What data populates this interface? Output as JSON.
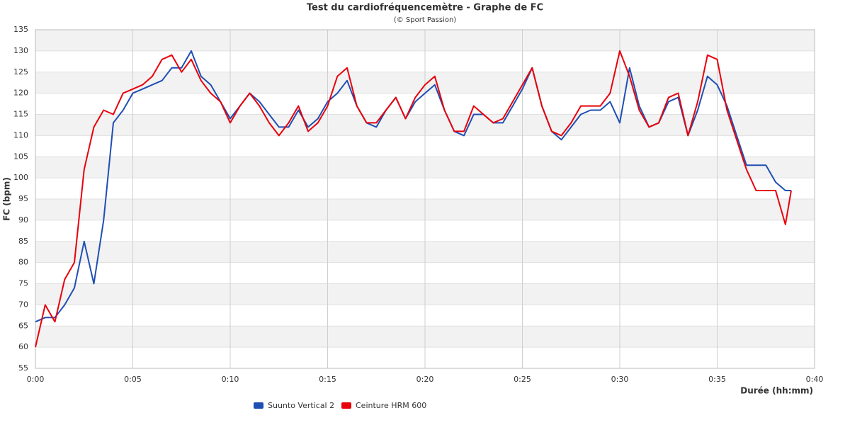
{
  "chart_data": {
    "type": "line",
    "title": "Test du cardiofréquencemètre - Graphe de FC",
    "subtitle": "(© Sport Passion)",
    "x_label": "Durée (hh:mm)",
    "y_label": "FC (bpm)",
    "x": [
      0,
      0.5,
      1,
      1.5,
      2,
      2.5,
      3,
      3.5,
      4,
      4.5,
      5,
      5.5,
      6,
      6.5,
      7,
      7.5,
      8,
      8.5,
      9,
      9.5,
      10,
      10.5,
      11,
      11.5,
      12,
      12.5,
      13,
      13.5,
      14,
      14.5,
      15,
      15.5,
      16,
      16.5,
      17,
      17.5,
      18,
      18.5,
      19,
      19.5,
      20,
      20.5,
      21,
      21.5,
      22,
      22.5,
      23,
      23.5,
      24,
      24.5,
      25,
      25.5,
      26,
      26.5,
      27,
      27.5,
      28,
      28.5,
      29,
      29.5,
      30,
      30.5,
      31,
      31.5,
      32,
      32.5,
      33,
      33.5,
      34,
      34.5,
      35,
      35.5,
      36,
      36.5,
      37,
      37.5,
      38,
      38.5,
      38.8
    ],
    "series": [
      {
        "name": "Suunto Vertical 2",
        "color": "#1f4fb4",
        "values": [
          66,
          67,
          67,
          70,
          74,
          85,
          75,
          90,
          113,
          116,
          120,
          121,
          122,
          123,
          126,
          126,
          130,
          124,
          122,
          118,
          114,
          117,
          120,
          118,
          115,
          112,
          112,
          116,
          112,
          114,
          118,
          120,
          123,
          117,
          113,
          112,
          116,
          119,
          114,
          118,
          120,
          122,
          116,
          111,
          110,
          115,
          115,
          113,
          113,
          117,
          121,
          126,
          117,
          111,
          109,
          112,
          115,
          116,
          116,
          118,
          113,
          126,
          117,
          112,
          113,
          118,
          119,
          110,
          116,
          124,
          122,
          117,
          110,
          103,
          103,
          103,
          99,
          97,
          97
        ]
      },
      {
        "name": "Ceinture HRM 600",
        "color": "#e8000b",
        "values": [
          60,
          70,
          66,
          76,
          80,
          102,
          112,
          116,
          115,
          120,
          121,
          122,
          124,
          128,
          129,
          125,
          128,
          123,
          120,
          118,
          113,
          117,
          120,
          117,
          113,
          110,
          113,
          117,
          111,
          113,
          117,
          124,
          126,
          117,
          113,
          113,
          116,
          119,
          114,
          119,
          122,
          124,
          116,
          111,
          111,
          117,
          115,
          113,
          114,
          118,
          122,
          126,
          117,
          111,
          110,
          113,
          117,
          117,
          117,
          120,
          130,
          124,
          116,
          112,
          113,
          119,
          120,
          110,
          118,
          129,
          128,
          116,
          109,
          102,
          97,
          97,
          97,
          89,
          97
        ]
      }
    ],
    "xlim": [
      0,
      40
    ],
    "xticks": [
      {
        "value": 0,
        "label": "0:00"
      },
      {
        "value": 5,
        "label": "0:05"
      },
      {
        "value": 10,
        "label": "0:10"
      },
      {
        "value": 15,
        "label": "0:15"
      },
      {
        "value": 20,
        "label": "0:20"
      },
      {
        "value": 25,
        "label": "0:25"
      },
      {
        "value": 30,
        "label": "0:30"
      },
      {
        "value": 35,
        "label": "0:35"
      },
      {
        "value": 40,
        "label": "0:40"
      }
    ],
    "ylim": [
      55,
      135
    ],
    "yticks": [
      55,
      60,
      65,
      70,
      75,
      80,
      85,
      90,
      95,
      100,
      105,
      110,
      115,
      120,
      125,
      130,
      135
    ],
    "grid": true,
    "legend": "bottom"
  }
}
